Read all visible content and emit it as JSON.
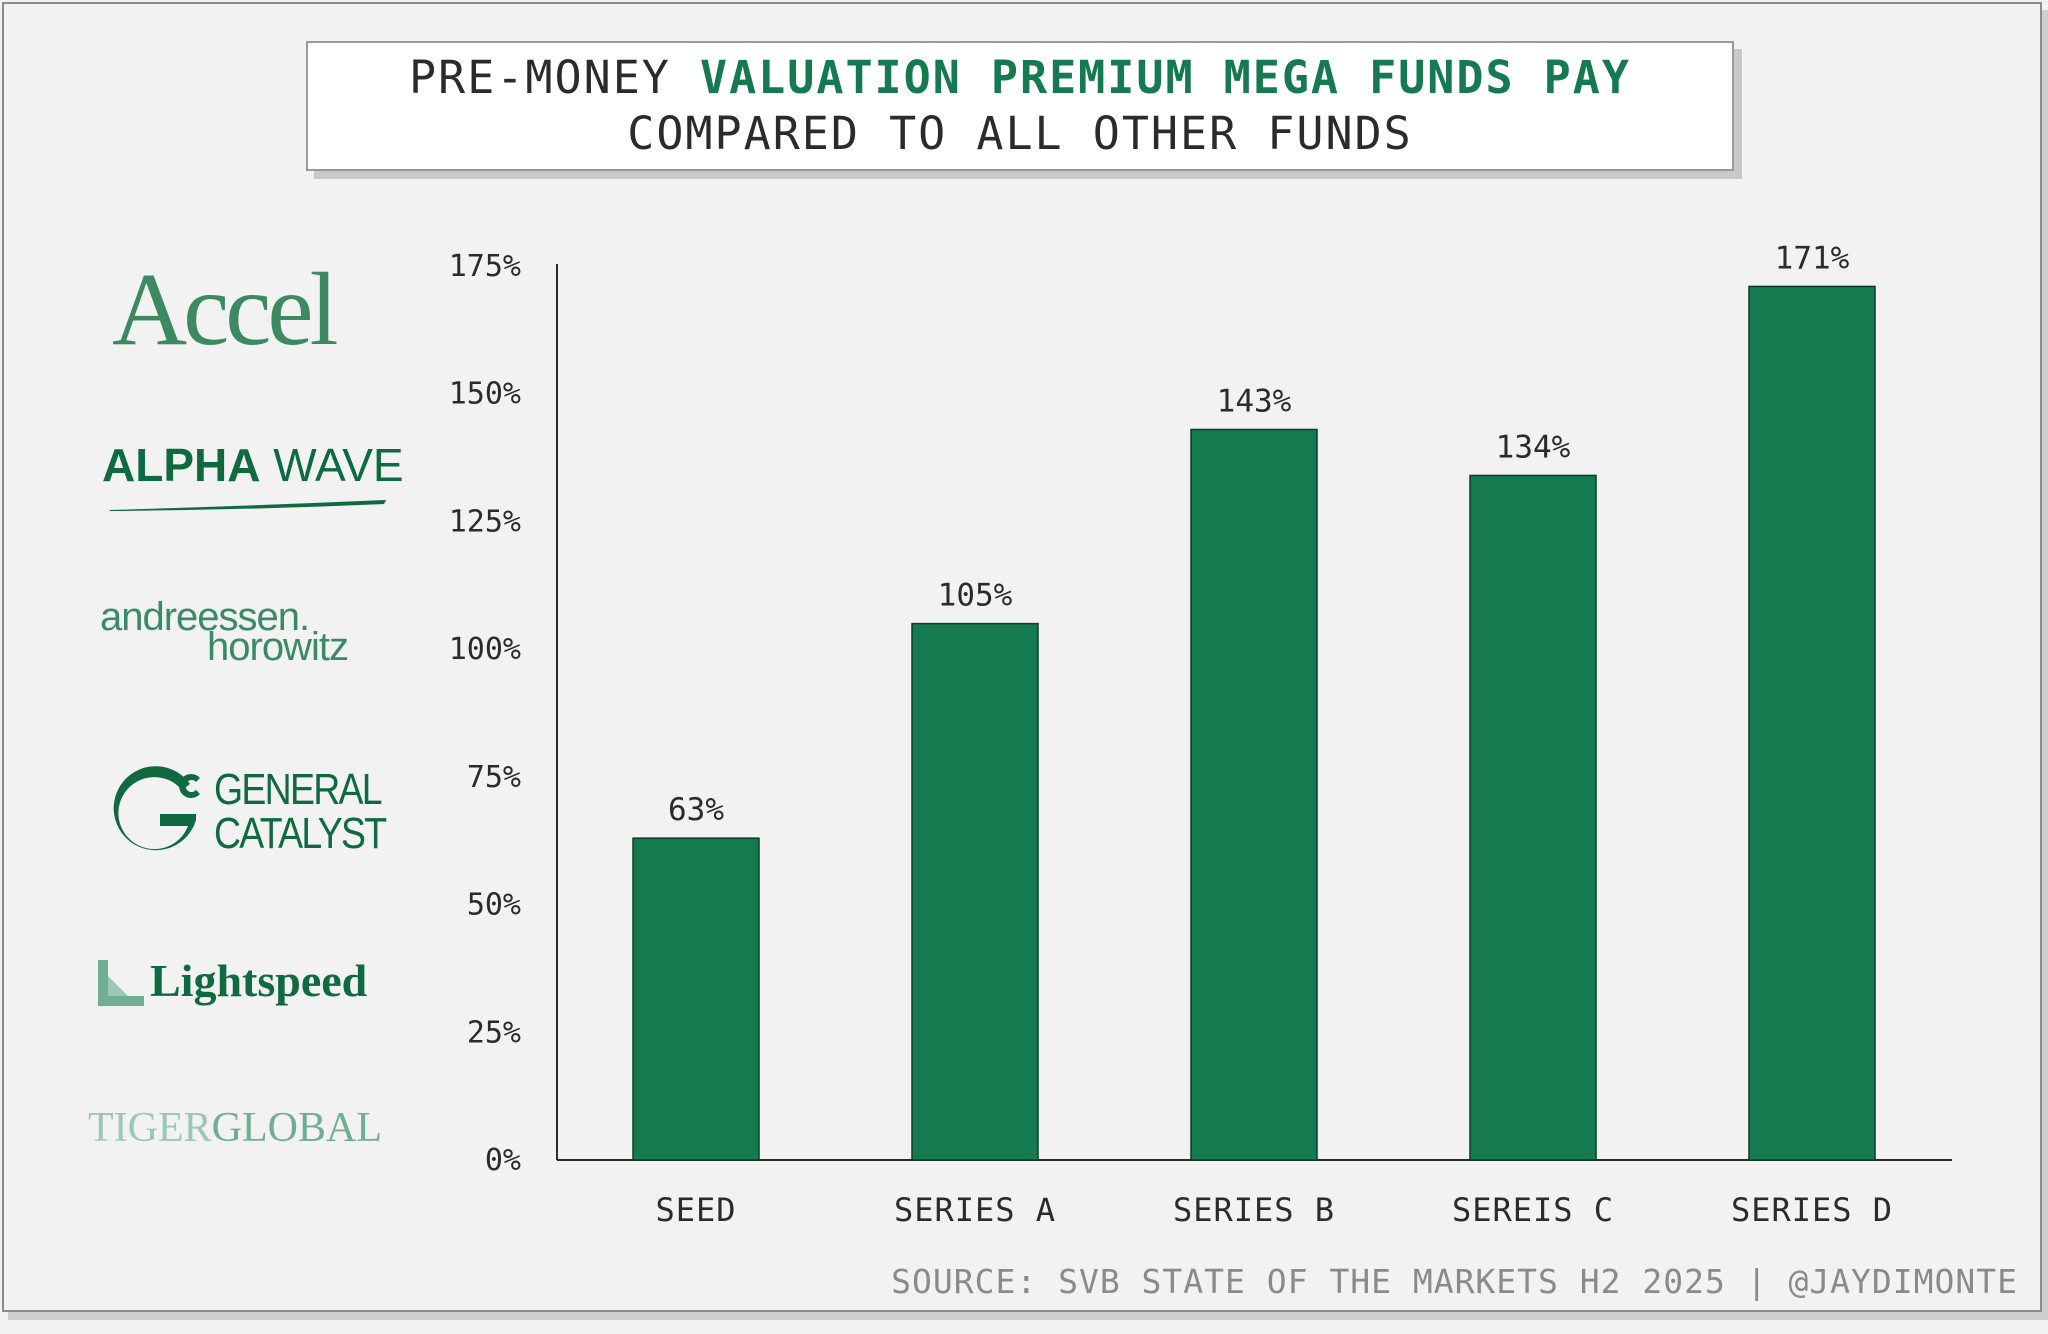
{
  "title": {
    "line1_pre": "PRE-MONEY ",
    "line1_highlight": "VALUATION PREMIUM MEGA FUNDS PAY",
    "line2": "COMPARED TO ALL OTHER FUNDS"
  },
  "logos": {
    "accel": "Accel",
    "alpha_bold": "ALPHA",
    "alpha_rest": " WAVE",
    "a16z_line1": "andreessen.",
    "a16z_line2": "horowitz",
    "gc_line1": "GENERAL",
    "gc_line2": "CATALYST",
    "lightspeed": "Lightspeed",
    "tiger_1": "TIGER",
    "tiger_2": "GLOBAL"
  },
  "source": "SOURCE: SVB STATE OF THE MARKETS H2 2025 | @JAYDIMONTE",
  "colors": {
    "bar": "#157a50",
    "highlight": "#157a50",
    "axis": "#2b2b2b"
  },
  "chart_data": {
    "type": "bar",
    "title": "PRE-MONEY VALUATION PREMIUM MEGA FUNDS PAY COMPARED TO ALL OTHER FUNDS",
    "categories": [
      "SEED",
      "SERIES A",
      "SERIES B",
      "SEREIS C",
      "SERIES D"
    ],
    "values": [
      63,
      105,
      143,
      134,
      171
    ],
    "value_labels": [
      "63%",
      "105%",
      "143%",
      "134%",
      "171%"
    ],
    "ylim": [
      0,
      175
    ],
    "yticks": [
      0,
      25,
      50,
      75,
      100,
      125,
      150,
      175
    ],
    "ytick_labels": [
      "0%",
      "25%",
      "50%",
      "75%",
      "100%",
      "125%",
      "150%",
      "175%"
    ],
    "xlabel": "",
    "ylabel": ""
  }
}
